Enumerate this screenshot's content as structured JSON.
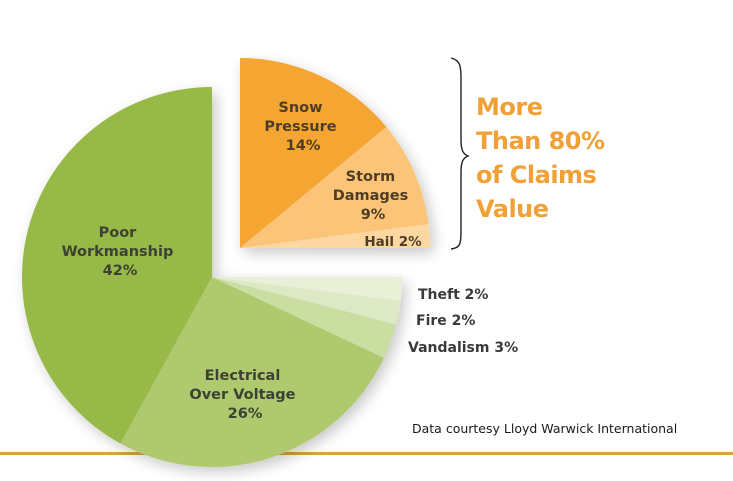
{
  "chart_data": {
    "type": "pie",
    "title": "",
    "subtitle": "",
    "exploded_group": "orange",
    "slices": [
      {
        "name": "Poor Workmanship",
        "value": 42,
        "label": [
          "Poor",
          "Workmanship",
          "42%"
        ],
        "color": "#97b947",
        "group": "green"
      },
      {
        "name": "Electrical Over Voltage",
        "value": 26,
        "label": [
          "Electrical",
          "Over Voltage",
          "26%"
        ],
        "color": "#afc96e",
        "group": "green"
      },
      {
        "name": "Vandalism",
        "value": 3,
        "label": [
          "Vandalism 3%"
        ],
        "color": "#c9dea0",
        "group": "green"
      },
      {
        "name": "Fire",
        "value": 2,
        "label": [
          "Fire 2%"
        ],
        "color": "#dce9c4",
        "group": "green"
      },
      {
        "name": "Theft",
        "value": 2,
        "label": [
          "Theft 2%"
        ],
        "color": "#e8f0d8",
        "group": "green"
      },
      {
        "name": "Snow Pressure",
        "value": 14,
        "label": [
          "Snow",
          "Pressure",
          "14%"
        ],
        "color": "#f5a530",
        "group": "orange"
      },
      {
        "name": "Storm Damages",
        "value": 9,
        "label": [
          "Storm",
          "Damages",
          "9%"
        ],
        "color": "#fbc478",
        "group": "orange"
      },
      {
        "name": "Hail",
        "value": 2,
        "label": [
          "Hail 2%"
        ],
        "color": "#fcd7a0",
        "group": "orange"
      }
    ],
    "annotation": [
      "More",
      "Than 80%",
      "of Claims",
      "Value"
    ],
    "source": "Data courtesy Lloyd Warwick International"
  },
  "labels": {
    "poor": [
      "Poor",
      "Workmanship",
      "42%"
    ],
    "electrical": [
      "Electrical",
      "Over Voltage",
      "26%"
    ],
    "snow": [
      "Snow",
      "Pressure",
      "14%"
    ],
    "storm": [
      "Storm",
      "Damages",
      "9%"
    ],
    "hail": "Hail 2%",
    "theft": "Theft 2%",
    "fire": "Fire 2%",
    "vandalism": "Vandalism 3%"
  },
  "callout": {
    "lines": [
      "More",
      "Than 80%",
      "of Claims",
      "Value"
    ],
    "color": "#f0a035"
  },
  "footer": {
    "source": "Data courtesy Lloyd Warwick International",
    "rule_color": "#e0a040"
  }
}
